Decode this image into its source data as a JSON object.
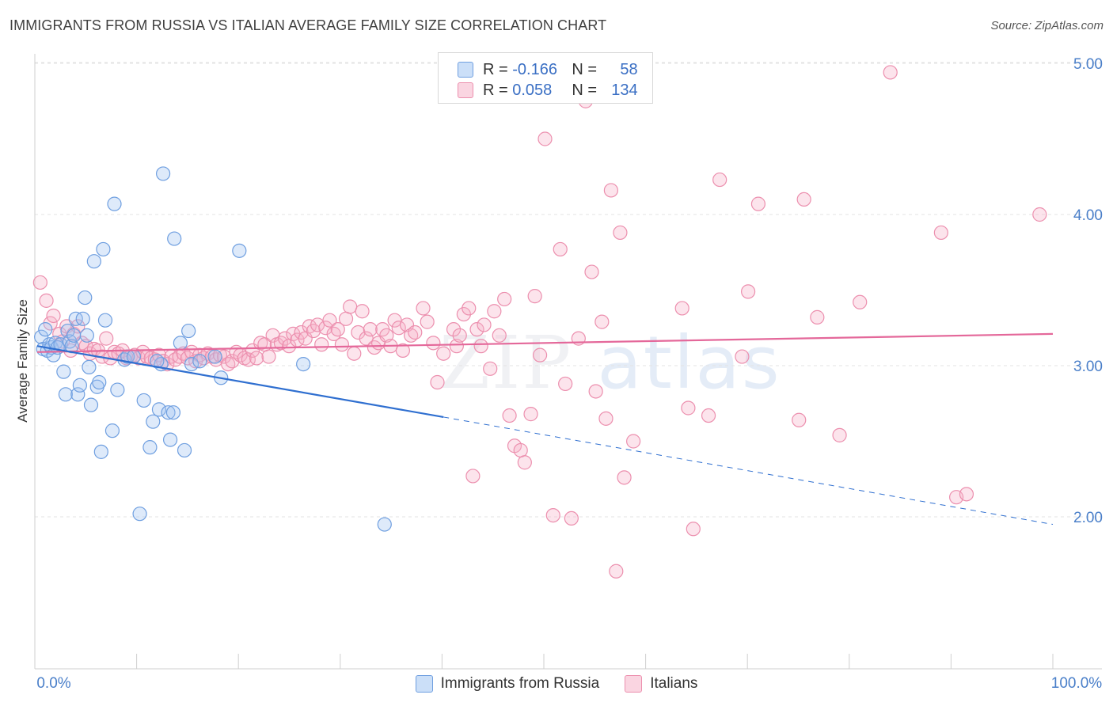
{
  "title": "IMMIGRANTS FROM RUSSIA VS ITALIAN AVERAGE FAMILY SIZE CORRELATION CHART",
  "source": "Source: ZipAtlas.com",
  "watermark": {
    "zip": "ZIP",
    "atlas": "atlas"
  },
  "legend_top": [
    {
      "r_label": "R =",
      "r_value": "-0.166",
      "n_label": "N =",
      "n_value": "58"
    },
    {
      "r_label": "R =",
      "r_value": "0.058",
      "n_label": "N =",
      "n_value": "134"
    }
  ],
  "colors": {
    "russia_fill": "rgba(160,196,242,0.35)",
    "russia_stroke": "#6f9fe0",
    "russia_line": "#2f6fd0",
    "italians_fill": "rgba(246,178,200,0.35)",
    "italians_stroke": "#ec8fae",
    "italians_line": "#e4689a",
    "grid": "#e3e3e3",
    "tick_label": "#4a7fc9"
  },
  "chart_data": {
    "type": "scatter",
    "title": "IMMIGRANTS FROM RUSSIA VS ITALIAN AVERAGE FAMILY SIZE CORRELATION CHART",
    "xlabel": "",
    "ylabel": "Average Family Size",
    "xlim": [
      0,
      100
    ],
    "ylim": [
      1.1,
      5.15
    ],
    "x_tick_labels": [
      "0.0%",
      "100.0%"
    ],
    "y_ticks": [
      2.0,
      3.0,
      4.0,
      5.0
    ],
    "y_tick_labels": [
      "2.00",
      "3.00",
      "4.00",
      "5.00"
    ],
    "grid": true,
    "legend_position": "bottom",
    "series": [
      {
        "name": "Immigrants from Russia",
        "R": -0.166,
        "N": 58,
        "trend": {
          "x0": 0,
          "y0": 3.13,
          "x1": 40,
          "y1": 2.66,
          "dashed_to_x": 100,
          "dashed_to_y": 1.95
        },
        "points": [
          [
            0.4,
            3.19
          ],
          [
            0.6,
            3.11
          ],
          [
            0.8,
            3.24
          ],
          [
            1.0,
            3.1
          ],
          [
            1.2,
            3.14
          ],
          [
            1.4,
            3.12
          ],
          [
            1.6,
            3.07
          ],
          [
            1.8,
            3.15
          ],
          [
            2.0,
            3.12
          ],
          [
            2.3,
            3.14
          ],
          [
            2.6,
            2.96
          ],
          [
            2.8,
            2.81
          ],
          [
            3.0,
            3.23
          ],
          [
            3.2,
            3.16
          ],
          [
            3.4,
            3.13
          ],
          [
            3.6,
            3.2
          ],
          [
            3.8,
            3.31
          ],
          [
            4.0,
            2.81
          ],
          [
            4.2,
            2.87
          ],
          [
            4.5,
            3.31
          ],
          [
            4.7,
            3.45
          ],
          [
            4.9,
            3.2
          ],
          [
            5.1,
            2.99
          ],
          [
            5.3,
            2.74
          ],
          [
            5.6,
            3.69
          ],
          [
            5.9,
            2.86
          ],
          [
            6.1,
            2.89
          ],
          [
            6.3,
            2.43
          ],
          [
            6.5,
            3.77
          ],
          [
            6.7,
            3.3
          ],
          [
            7.4,
            2.57
          ],
          [
            7.6,
            4.07
          ],
          [
            7.9,
            2.84
          ],
          [
            8.6,
            3.04
          ],
          [
            8.9,
            3.06
          ],
          [
            9.5,
            3.06
          ],
          [
            10.1,
            2.02
          ],
          [
            10.5,
            2.77
          ],
          [
            11.1,
            2.46
          ],
          [
            11.4,
            2.63
          ],
          [
            12.0,
            2.71
          ],
          [
            12.4,
            4.27
          ],
          [
            12.2,
            3.01
          ],
          [
            11.8,
            3.03
          ],
          [
            12.9,
            2.69
          ],
          [
            13.1,
            2.51
          ],
          [
            13.4,
            2.69
          ],
          [
            13.5,
            3.84
          ],
          [
            14.1,
            3.15
          ],
          [
            14.5,
            2.44
          ],
          [
            14.9,
            3.23
          ],
          [
            15.2,
            3.01
          ],
          [
            16.0,
            3.03
          ],
          [
            17.5,
            3.06
          ],
          [
            18.1,
            2.92
          ],
          [
            19.9,
            3.76
          ],
          [
            26.2,
            3.01
          ],
          [
            34.2,
            1.95
          ]
        ]
      },
      {
        "name": "Italians",
        "R": 0.058,
        "N": 134,
        "trend": {
          "x0": 0,
          "y0": 3.09,
          "x1": 100,
          "y1": 3.21
        },
        "points": [
          [
            0.3,
            3.55
          ],
          [
            0.9,
            3.43
          ],
          [
            1.3,
            3.28
          ],
          [
            1.6,
            3.33
          ],
          [
            2.2,
            3.21
          ],
          [
            2.5,
            3.16
          ],
          [
            2.9,
            3.26
          ],
          [
            3.3,
            3.1
          ],
          [
            3.6,
            3.21
          ],
          [
            4.0,
            3.26
          ],
          [
            4.4,
            3.15
          ],
          [
            4.8,
            3.13
          ],
          [
            5.2,
            3.08
          ],
          [
            5.6,
            3.11
          ],
          [
            6.0,
            3.1
          ],
          [
            6.4,
            3.06
          ],
          [
            6.8,
            3.18
          ],
          [
            7.2,
            3.05
          ],
          [
            7.6,
            3.09
          ],
          [
            8.0,
            3.08
          ],
          [
            8.4,
            3.1
          ],
          [
            8.8,
            3.05
          ],
          [
            9.2,
            3.06
          ],
          [
            9.6,
            3.07
          ],
          [
            10.0,
            3.05
          ],
          [
            10.4,
            3.09
          ],
          [
            10.8,
            3.06
          ],
          [
            11.2,
            3.05
          ],
          [
            11.6,
            3.04
          ],
          [
            12.0,
            3.07
          ],
          [
            12.4,
            3.03
          ],
          [
            12.8,
            3.01
          ],
          [
            13.2,
            3.06
          ],
          [
            13.6,
            3.04
          ],
          [
            14.0,
            3.06
          ],
          [
            14.4,
            3.08
          ],
          [
            14.8,
            3.05
          ],
          [
            15.2,
            3.09
          ],
          [
            15.6,
            3.03
          ],
          [
            16.0,
            3.07
          ],
          [
            16.4,
            3.05
          ],
          [
            16.8,
            3.08
          ],
          [
            17.2,
            3.06
          ],
          [
            17.6,
            3.04
          ],
          [
            18.0,
            3.07
          ],
          [
            18.4,
            3.06
          ],
          [
            18.8,
            3.01
          ],
          [
            19.2,
            3.03
          ],
          [
            19.6,
            3.09
          ],
          [
            20.0,
            3.07
          ],
          [
            20.4,
            3.05
          ],
          [
            20.8,
            3.04
          ],
          [
            21.2,
            3.1
          ],
          [
            21.6,
            3.05
          ],
          [
            22.0,
            3.15
          ],
          [
            22.4,
            3.14
          ],
          [
            22.8,
            3.06
          ],
          [
            23.2,
            3.2
          ],
          [
            23.6,
            3.14
          ],
          [
            24.0,
            3.15
          ],
          [
            24.4,
            3.18
          ],
          [
            24.8,
            3.13
          ],
          [
            25.2,
            3.21
          ],
          [
            25.6,
            3.17
          ],
          [
            26.0,
            3.22
          ],
          [
            26.4,
            3.18
          ],
          [
            26.8,
            3.26
          ],
          [
            27.2,
            3.23
          ],
          [
            27.6,
            3.27
          ],
          [
            28.0,
            3.14
          ],
          [
            28.4,
            3.25
          ],
          [
            28.8,
            3.3
          ],
          [
            29.2,
            3.21
          ],
          [
            29.6,
            3.24
          ],
          [
            30.0,
            3.14
          ],
          [
            30.4,
            3.31
          ],
          [
            30.8,
            3.39
          ],
          [
            31.2,
            3.08
          ],
          [
            31.6,
            3.22
          ],
          [
            32.0,
            3.36
          ],
          [
            32.4,
            3.18
          ],
          [
            32.8,
            3.24
          ],
          [
            33.2,
            3.12
          ],
          [
            33.6,
            3.15
          ],
          [
            34.0,
            3.24
          ],
          [
            34.4,
            3.2
          ],
          [
            34.8,
            3.13
          ],
          [
            35.2,
            3.3
          ],
          [
            35.6,
            3.25
          ],
          [
            36.0,
            3.1
          ],
          [
            36.4,
            3.27
          ],
          [
            36.8,
            3.2
          ],
          [
            37.2,
            3.22
          ],
          [
            38.0,
            3.38
          ],
          [
            38.4,
            3.29
          ],
          [
            39.0,
            3.15
          ],
          [
            39.4,
            2.89
          ],
          [
            40.0,
            3.08
          ],
          [
            41.0,
            3.24
          ],
          [
            41.3,
            3.13
          ],
          [
            41.6,
            3.2
          ],
          [
            42.0,
            3.34
          ],
          [
            42.5,
            3.38
          ],
          [
            42.9,
            2.27
          ],
          [
            43.3,
            3.24
          ],
          [
            43.7,
            3.13
          ],
          [
            44.0,
            3.27
          ],
          [
            44.6,
            2.98
          ],
          [
            45.0,
            3.36
          ],
          [
            45.5,
            3.2
          ],
          [
            46.0,
            3.44
          ],
          [
            46.5,
            2.67
          ],
          [
            47.0,
            2.47
          ],
          [
            47.6,
            2.44
          ],
          [
            48.0,
            2.36
          ],
          [
            48.6,
            2.68
          ],
          [
            49.0,
            3.46
          ],
          [
            49.5,
            3.07
          ],
          [
            50.0,
            4.5
          ],
          [
            50.8,
            2.01
          ],
          [
            51.5,
            3.77
          ],
          [
            52.0,
            2.88
          ],
          [
            52.6,
            1.99
          ],
          [
            53.3,
            3.18
          ],
          [
            54.0,
            4.75
          ],
          [
            54.6,
            3.62
          ],
          [
            55.0,
            2.83
          ],
          [
            55.6,
            3.29
          ],
          [
            56.0,
            2.65
          ],
          [
            56.5,
            4.16
          ],
          [
            57.0,
            1.64
          ],
          [
            57.4,
            3.88
          ],
          [
            57.8,
            2.26
          ],
          [
            58.7,
            2.5
          ],
          [
            63.5,
            3.38
          ],
          [
            64.1,
            2.72
          ],
          [
            64.6,
            1.92
          ],
          [
            66.1,
            2.67
          ],
          [
            67.2,
            4.23
          ],
          [
            69.4,
            3.06
          ],
          [
            70.0,
            3.49
          ],
          [
            71.0,
            4.07
          ],
          [
            75.0,
            2.64
          ],
          [
            75.5,
            4.1
          ],
          [
            76.8,
            3.32
          ],
          [
            79.0,
            2.54
          ],
          [
            81.0,
            3.42
          ],
          [
            84.0,
            4.94
          ],
          [
            89.0,
            3.88
          ],
          [
            90.5,
            2.13
          ],
          [
            91.5,
            2.15
          ],
          [
            98.7,
            4.0
          ]
        ]
      }
    ]
  }
}
